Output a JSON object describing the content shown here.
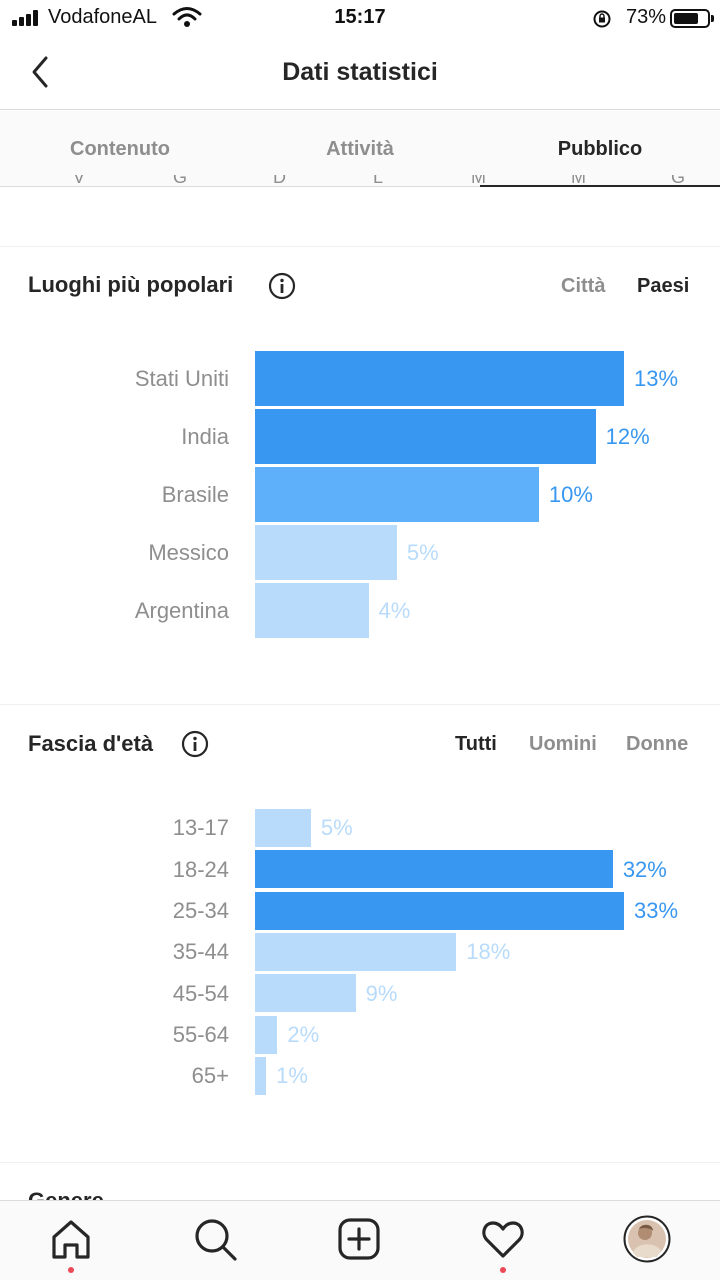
{
  "status_bar": {
    "carrier": "VodafoneAL",
    "time": "15:17",
    "battery": "73%",
    "battery_level": 0.73,
    "icons": [
      "signal-icon",
      "wifi-icon",
      "rotation-lock-icon",
      "battery-icon"
    ]
  },
  "header": {
    "title": "Dati statistici",
    "back_icon": "chevron-left-icon"
  },
  "tabs": [
    {
      "label": "Contenuto",
      "active": false
    },
    {
      "label": "Attività",
      "active": false
    },
    {
      "label": "Pubblico",
      "active": true
    }
  ],
  "weekdays": [
    "V",
    "G",
    "D",
    "L",
    "M",
    "M",
    "G"
  ],
  "locations": {
    "title": "Luoghi più popolari",
    "filters": [
      {
        "label": "Città",
        "active": false
      },
      {
        "label": "Paesi",
        "active": true
      }
    ],
    "chart_data": {
      "type": "bar",
      "orientation": "horizontal",
      "categories": [
        "Stati Uniti",
        "India",
        "Brasile",
        "Messico",
        "Argentina"
      ],
      "values": [
        13,
        12,
        10,
        5,
        4
      ],
      "value_labels": [
        "13%",
        "12%",
        "10%",
        "5%",
        "4%"
      ],
      "unit": "%",
      "max": 13
    }
  },
  "age": {
    "title": "Fascia d'età",
    "filters": [
      {
        "label": "Tutti",
        "active": true
      },
      {
        "label": "Uomini",
        "active": false
      },
      {
        "label": "Donne",
        "active": false
      }
    ],
    "chart_data": {
      "type": "bar",
      "orientation": "horizontal",
      "categories": [
        "13-17",
        "18-24",
        "25-34",
        "35-44",
        "45-54",
        "55-64",
        "65+"
      ],
      "values": [
        5,
        32,
        33,
        18,
        9,
        2,
        1
      ],
      "value_labels": [
        "5%",
        "32%",
        "33%",
        "18%",
        "9%",
        "2%",
        "1%"
      ],
      "unit": "%",
      "max": 33
    }
  },
  "next_section_title": "Genere",
  "colors": {
    "bar_dark": "#3897f0",
    "bar_mid": "#5fb0fa",
    "bar_light": "#b8dbfb",
    "text_dark": "#262626",
    "text_muted": "#8e8e8e",
    "notification": "#ed4956"
  },
  "bottom_nav": [
    {
      "icon": "home-icon",
      "notification": true
    },
    {
      "icon": "search-icon",
      "notification": false
    },
    {
      "icon": "add-post-icon",
      "notification": false
    },
    {
      "icon": "heart-icon",
      "notification": true
    },
    {
      "icon": "profile-avatar",
      "notification": false
    }
  ]
}
